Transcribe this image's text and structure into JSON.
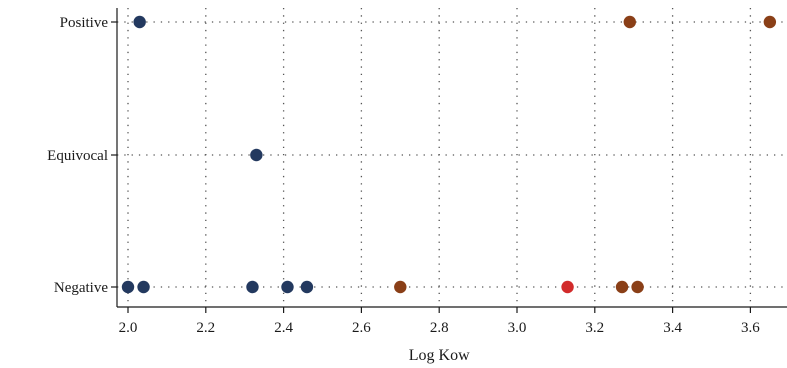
{
  "chart_data": {
    "type": "scatter",
    "xlabel": "Log Kow",
    "ylabel": "",
    "xlim": [
      1.95,
      3.68
    ],
    "x_ticks": [
      2.0,
      2.2,
      2.4,
      2.6,
      2.8,
      3.0,
      3.2,
      3.4,
      3.6
    ],
    "x_tick_labels": [
      "2.0",
      "2.2",
      "2.4",
      "2.6",
      "2.8",
      "3.0",
      "3.2",
      "3.4",
      "3.6"
    ],
    "y_categories": [
      "Negative",
      "Equivocal",
      "Positive"
    ],
    "grid": true,
    "colors": {
      "navy": "#23395f",
      "brown": "#8a3f17",
      "red": "#d22b2b"
    },
    "points": [
      {
        "x": 2.03,
        "y": "Positive",
        "color": "navy"
      },
      {
        "x": 3.29,
        "y": "Positive",
        "color": "brown"
      },
      {
        "x": 3.65,
        "y": "Positive",
        "color": "brown"
      },
      {
        "x": 2.33,
        "y": "Equivocal",
        "color": "navy"
      },
      {
        "x": 2.0,
        "y": "Negative",
        "color": "navy"
      },
      {
        "x": 2.04,
        "y": "Negative",
        "color": "navy"
      },
      {
        "x": 2.32,
        "y": "Negative",
        "color": "navy"
      },
      {
        "x": 2.41,
        "y": "Negative",
        "color": "navy"
      },
      {
        "x": 2.46,
        "y": "Negative",
        "color": "navy"
      },
      {
        "x": 2.7,
        "y": "Negative",
        "color": "brown"
      },
      {
        "x": 3.13,
        "y": "Negative",
        "color": "red"
      },
      {
        "x": 3.27,
        "y": "Negative",
        "color": "brown"
      },
      {
        "x": 3.31,
        "y": "Negative",
        "color": "brown"
      }
    ]
  }
}
